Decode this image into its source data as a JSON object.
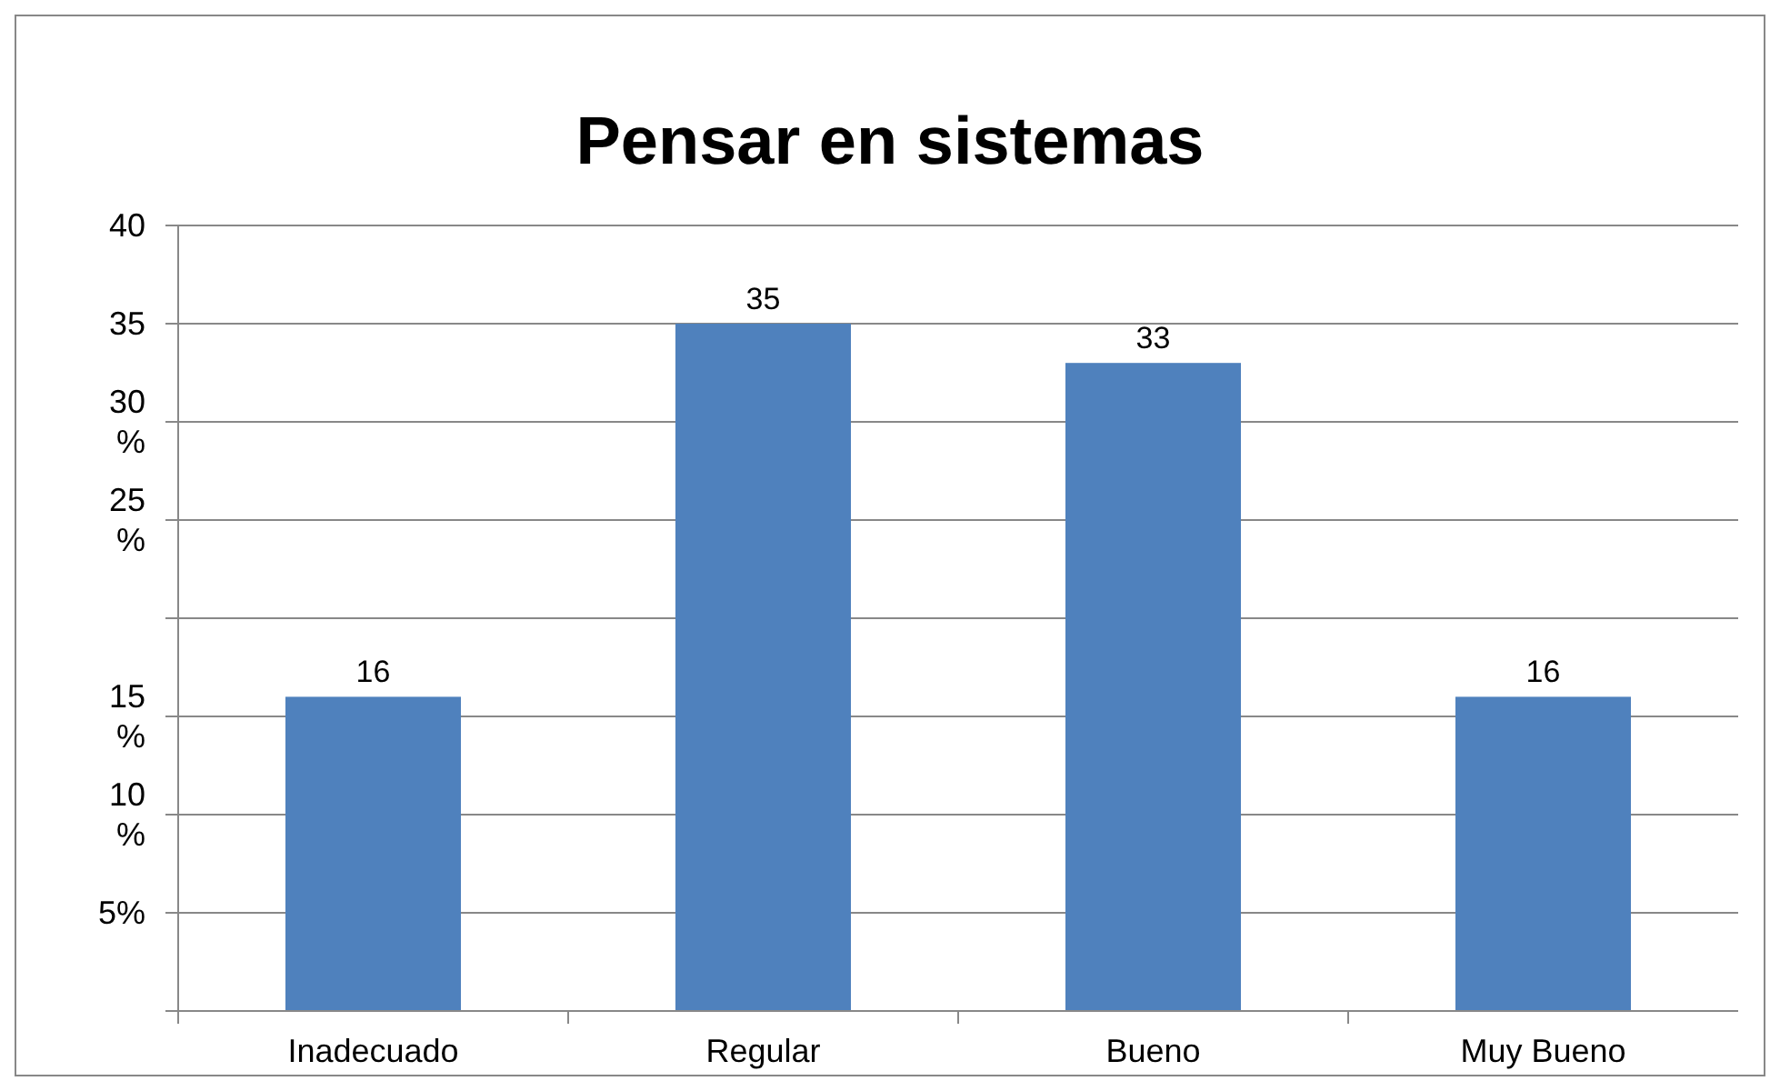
{
  "chart_data": {
    "type": "bar",
    "title": "Pensar en sistemas",
    "categories": [
      "Inadecuado",
      "Regular",
      "Bueno",
      "Muy Bueno"
    ],
    "values": [
      16,
      35,
      33,
      16
    ],
    "color": "#4f81bd",
    "data_labels": true,
    "ylim": [
      0,
      40
    ],
    "yticks": [
      {
        "value": 0,
        "label": null
      },
      {
        "value": 5,
        "label": "5%"
      },
      {
        "value": 10,
        "label": "10 %"
      },
      {
        "value": 15,
        "label": "15 %"
      },
      {
        "value": 20,
        "label": null
      },
      {
        "value": 25,
        "label": "25 %"
      },
      {
        "value": 30,
        "label": "30 %"
      },
      35,
      40
    ],
    "grid": "y"
  }
}
